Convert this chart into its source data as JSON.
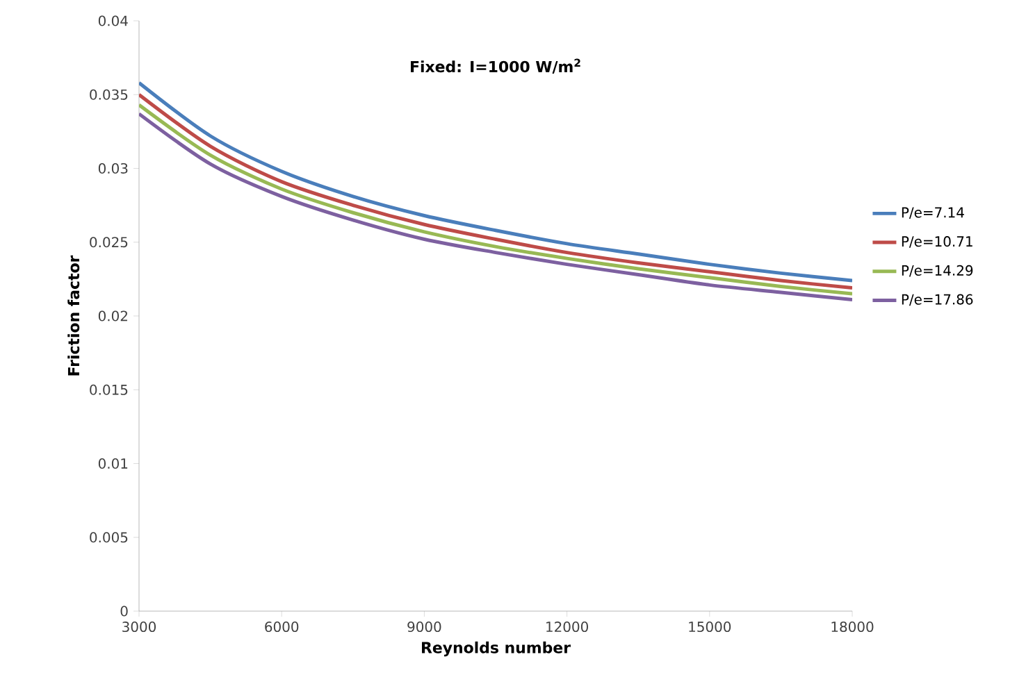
{
  "chart_data": {
    "type": "line",
    "title": "Fixed: I=1000 W/m$^{2}$",
    "xlabel": "Reynolds number",
    "ylabel": "Friction factor",
    "x": [
      3000,
      4500,
      6000,
      7500,
      9000,
      10500,
      12000,
      13500,
      15000,
      16500,
      18000
    ],
    "xlim": [
      3000,
      18000
    ],
    "xticks": [
      3000,
      6000,
      9000,
      12000,
      15000,
      18000
    ],
    "ylim": [
      0,
      0.04
    ],
    "yticks": [
      0,
      0.005,
      0.01,
      0.015,
      0.02,
      0.025,
      0.03,
      0.035,
      0.04
    ],
    "grid": false,
    "legend": "right",
    "marker": "none",
    "line_style": "solid",
    "series": [
      {
        "name": "P/e=7.14",
        "color": "#4a7ebb",
        "values": [
          0.0358,
          0.0322,
          0.0298,
          0.0281,
          0.0268,
          0.0258,
          0.0249,
          0.0242,
          0.0235,
          0.0229,
          0.0224
        ]
      },
      {
        "name": "P/e=10.71",
        "color": "#be4b48",
        "values": [
          0.035,
          0.0315,
          0.0291,
          0.0275,
          0.0262,
          0.0252,
          0.0243,
          0.0236,
          0.023,
          0.0224,
          0.0219
        ]
      },
      {
        "name": "P/e=14.29",
        "color": "#98b954",
        "values": [
          0.0343,
          0.0309,
          0.0286,
          0.027,
          0.0257,
          0.0247,
          0.0239,
          0.0232,
          0.0226,
          0.022,
          0.0215
        ]
      },
      {
        "name": "P/e=17.86",
        "color": "#7d60a0",
        "values": [
          0.0337,
          0.0303,
          0.0281,
          0.0265,
          0.0252,
          0.0243,
          0.0235,
          0.0228,
          0.0221,
          0.0216,
          0.0211
        ]
      }
    ]
  }
}
